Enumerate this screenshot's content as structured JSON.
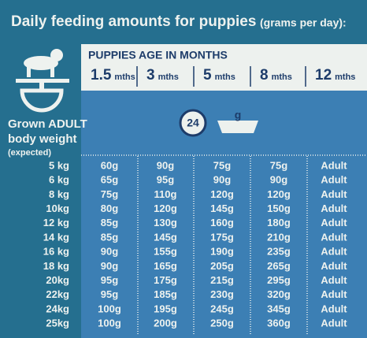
{
  "header": {
    "title": "Daily feeding amounts for puppies",
    "subtitle": "(grams per day):"
  },
  "age_header": {
    "label": "PUPPIES AGE IN MONTHS",
    "ages": [
      {
        "value": "1.5",
        "unit": "mths"
      },
      {
        "value": "3",
        "unit": "mths"
      },
      {
        "value": "5",
        "unit": "mths"
      },
      {
        "value": "8",
        "unit": "mths"
      },
      {
        "value": "12",
        "unit": "mths"
      }
    ]
  },
  "weight_label": {
    "lines": [
      "Grown ADULT",
      "body weight"
    ],
    "note": "(expected)"
  },
  "icon": {
    "hours": "24",
    "unit": "g"
  },
  "table": {
    "rows": [
      [
        "5 kg",
        "60g",
        "90g",
        "75g",
        "75g",
        "Adult"
      ],
      [
        "6 kg",
        "65g",
        "95g",
        "90g",
        "90g",
        "Adult"
      ],
      [
        "8 kg",
        "75g",
        "110g",
        "120g",
        "120g",
        "Adult"
      ],
      [
        "10kg",
        "80g",
        "120g",
        "145g",
        "150g",
        "Adult"
      ],
      [
        "12 kg",
        "85g",
        "130g",
        "160g",
        "180g",
        "Adult"
      ],
      [
        "14 kg",
        "85g",
        "145g",
        "175g",
        "210g",
        "Adult"
      ],
      [
        "16 kg",
        "90g",
        "155g",
        "190g",
        "235g",
        "Adult"
      ],
      [
        "18 kg",
        "90g",
        "165g",
        "205g",
        "265g",
        "Adult"
      ],
      [
        "20kg",
        "95g",
        "175g",
        "215g",
        "295g",
        "Adult"
      ],
      [
        "22kg",
        "95g",
        "185g",
        "230g",
        "320g",
        "Adult"
      ],
      [
        "24kg",
        "100g",
        "195g",
        "245g",
        "345g",
        "Adult"
      ],
      [
        "25kg",
        "100g",
        "200g",
        "250g",
        "360g",
        "Adult"
      ]
    ]
  }
}
